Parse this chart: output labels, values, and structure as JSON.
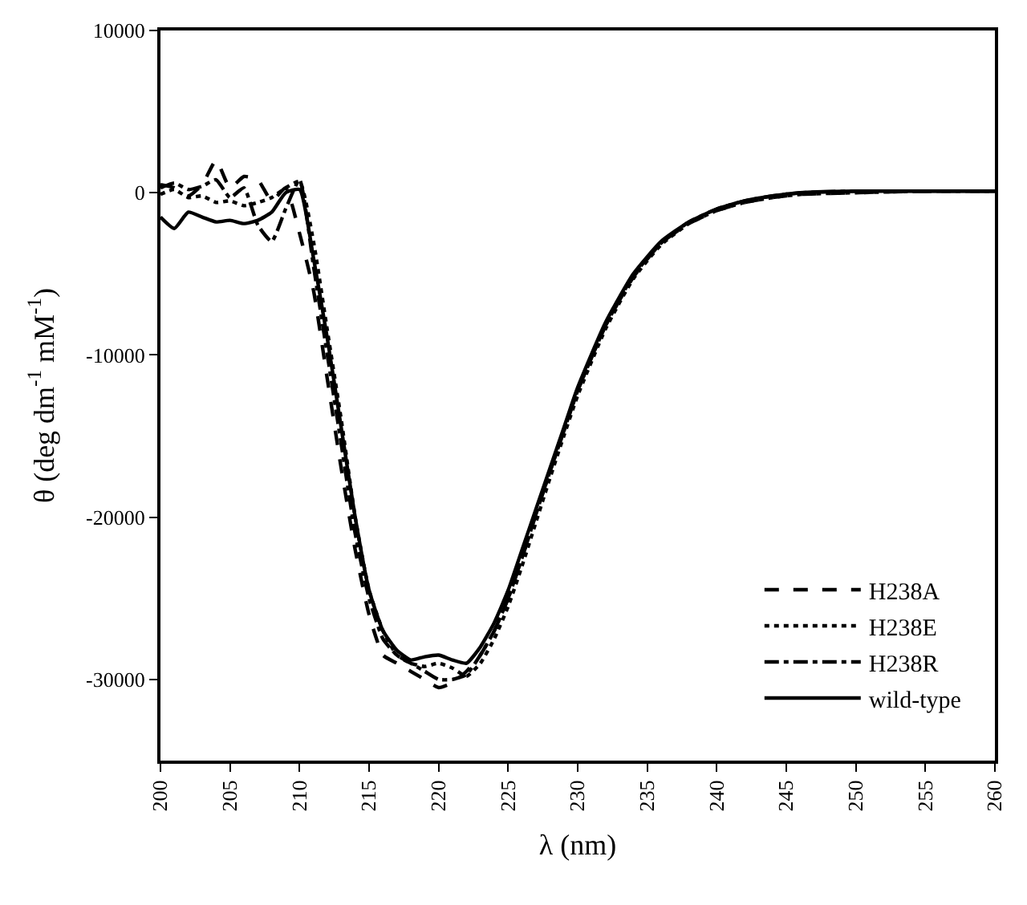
{
  "chart_data": {
    "type": "line",
    "xlabel": "λ (nm)",
    "ylabel": "θ (deg dm$^{-1}$ mM$^{-1}$)",
    "xlim": [
      200,
      260
    ],
    "xticks": [
      200,
      205,
      210,
      215,
      220,
      225,
      230,
      235,
      240,
      245,
      250,
      255,
      260
    ],
    "ylim": [
      -35000,
      10000
    ],
    "yticks": [
      -30000,
      -20000,
      -10000,
      0,
      10000
    ],
    "legend": "bottom right",
    "marker": "none",
    "series": [
      {
        "name": "H238A",
        "color": "#000000",
        "line_style": "dashed",
        "x": [
          200,
          201,
          202,
          203,
          204,
          205,
          206,
          207,
          208,
          209,
          210,
          211,
          212,
          213,
          214,
          215,
          216,
          217,
          218,
          219,
          220,
          221,
          222,
          223,
          224,
          225,
          226,
          227,
          228,
          229,
          230,
          232,
          234,
          236,
          238,
          240,
          242,
          244,
          246,
          250,
          255,
          260
        ],
        "values": [
          500,
          300,
          -200,
          500,
          2000,
          300,
          1000,
          800,
          -500,
          300,
          -2500,
          -6000,
          -11500,
          -17000,
          -22000,
          -26000,
          -28500,
          -29000,
          -29500,
          -30000,
          -30500,
          -30200,
          -29500,
          -28500,
          -27000,
          -25000,
          -22500,
          -19800,
          -17200,
          -14700,
          -12200,
          -8200,
          -5200,
          -3100,
          -1900,
          -1100,
          -600,
          -300,
          -100,
          0,
          100,
          100
        ]
      },
      {
        "name": "H238E",
        "color": "#000000",
        "line_style": "dotted",
        "x": [
          200,
          201,
          202,
          203,
          204,
          205,
          206,
          207,
          208,
          209,
          210,
          211,
          212,
          213,
          214,
          215,
          216,
          217,
          218,
          219,
          220,
          221,
          222,
          223,
          224,
          225,
          226,
          227,
          228,
          229,
          230,
          232,
          234,
          236,
          238,
          240,
          242,
          244,
          246,
          250,
          255,
          260
        ],
        "values": [
          -100,
          200,
          -300,
          -200,
          -600,
          -500,
          -800,
          -600,
          -300,
          300,
          700,
          -3000,
          -8500,
          -14000,
          -20000,
          -24500,
          -27000,
          -28500,
          -29000,
          -29200,
          -29000,
          -29300,
          -29800,
          -29000,
          -27500,
          -25500,
          -23000,
          -20300,
          -17600,
          -15000,
          -12500,
          -8400,
          -5300,
          -3200,
          -1900,
          -1100,
          -600,
          -300,
          -100,
          0,
          100,
          100
        ]
      },
      {
        "name": "H238R",
        "color": "#000000",
        "line_style": "dashdot",
        "x": [
          200,
          201,
          202,
          203,
          204,
          205,
          206,
          207,
          208,
          209,
          210,
          211,
          212,
          213,
          214,
          215,
          216,
          217,
          218,
          219,
          220,
          221,
          222,
          223,
          224,
          225,
          226,
          227,
          228,
          229,
          230,
          232,
          234,
          236,
          238,
          240,
          242,
          244,
          246,
          250,
          255,
          260
        ],
        "values": [
          300,
          600,
          200,
          400,
          800,
          -300,
          300,
          -2000,
          -3000,
          -1000,
          800,
          -4500,
          -10000,
          -15500,
          -21000,
          -25000,
          -27500,
          -28500,
          -29000,
          -29500,
          -30000,
          -30000,
          -29700,
          -28500,
          -27000,
          -25000,
          -22500,
          -19800,
          -17200,
          -14700,
          -12200,
          -8200,
          -5100,
          -3100,
          -1800,
          -1000,
          -500,
          -200,
          0,
          100,
          100,
          100
        ]
      },
      {
        "name": "wild-type",
        "color": "#000000",
        "line_style": "solid",
        "x": [
          200,
          201,
          202,
          203,
          204,
          205,
          206,
          207,
          208,
          209,
          210,
          211,
          212,
          213,
          214,
          215,
          216,
          217,
          218,
          219,
          220,
          221,
          222,
          223,
          224,
          225,
          226,
          227,
          228,
          229,
          230,
          232,
          234,
          236,
          238,
          240,
          242,
          244,
          246,
          250,
          255,
          260
        ],
        "values": [
          -1500,
          -2200,
          -1200,
          -1500,
          -1800,
          -1700,
          -1900,
          -1700,
          -1200,
          0,
          200,
          -4000,
          -9000,
          -14500,
          -20000,
          -24500,
          -27000,
          -28200,
          -28800,
          -28600,
          -28500,
          -28800,
          -29000,
          -28000,
          -26500,
          -24500,
          -22000,
          -19500,
          -17000,
          -14500,
          -12000,
          -8000,
          -5000,
          -3000,
          -1800,
          -1000,
          -500,
          -200,
          0,
          100,
          100,
          100
        ]
      }
    ]
  }
}
